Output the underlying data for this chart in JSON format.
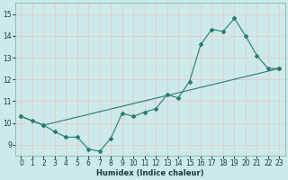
{
  "title": "",
  "xlabel": "Humidex (Indice chaleur)",
  "ylabel": "",
  "background_color": "#cceaea",
  "grid_color_h": "#e8c8c8",
  "grid_color_v": "#e8c8c8",
  "line_color": "#2a7a72",
  "xlim": [
    -0.5,
    23.5
  ],
  "ylim": [
    8.5,
    15.5
  ],
  "xticks": [
    0,
    1,
    2,
    3,
    4,
    5,
    6,
    7,
    8,
    9,
    10,
    11,
    12,
    13,
    14,
    15,
    16,
    17,
    18,
    19,
    20,
    21,
    22,
    23
  ],
  "yticks": [
    9,
    10,
    11,
    12,
    13,
    14,
    15
  ],
  "series1_x": [
    0,
    1,
    2,
    3,
    4,
    5,
    6,
    7,
    8,
    9,
    10,
    11,
    12,
    13,
    14,
    15,
    16,
    17,
    18,
    19,
    20,
    21,
    22,
    23
  ],
  "series1_y": [
    10.3,
    10.1,
    9.9,
    9.6,
    9.35,
    9.35,
    8.8,
    8.7,
    9.3,
    10.45,
    10.3,
    10.5,
    10.65,
    11.3,
    11.15,
    11.9,
    13.6,
    14.3,
    14.2,
    14.8,
    14.0,
    13.1,
    12.5,
    12.5
  ],
  "series2_x": [
    0,
    2,
    23
  ],
  "series2_y": [
    10.3,
    9.9,
    12.5
  ]
}
